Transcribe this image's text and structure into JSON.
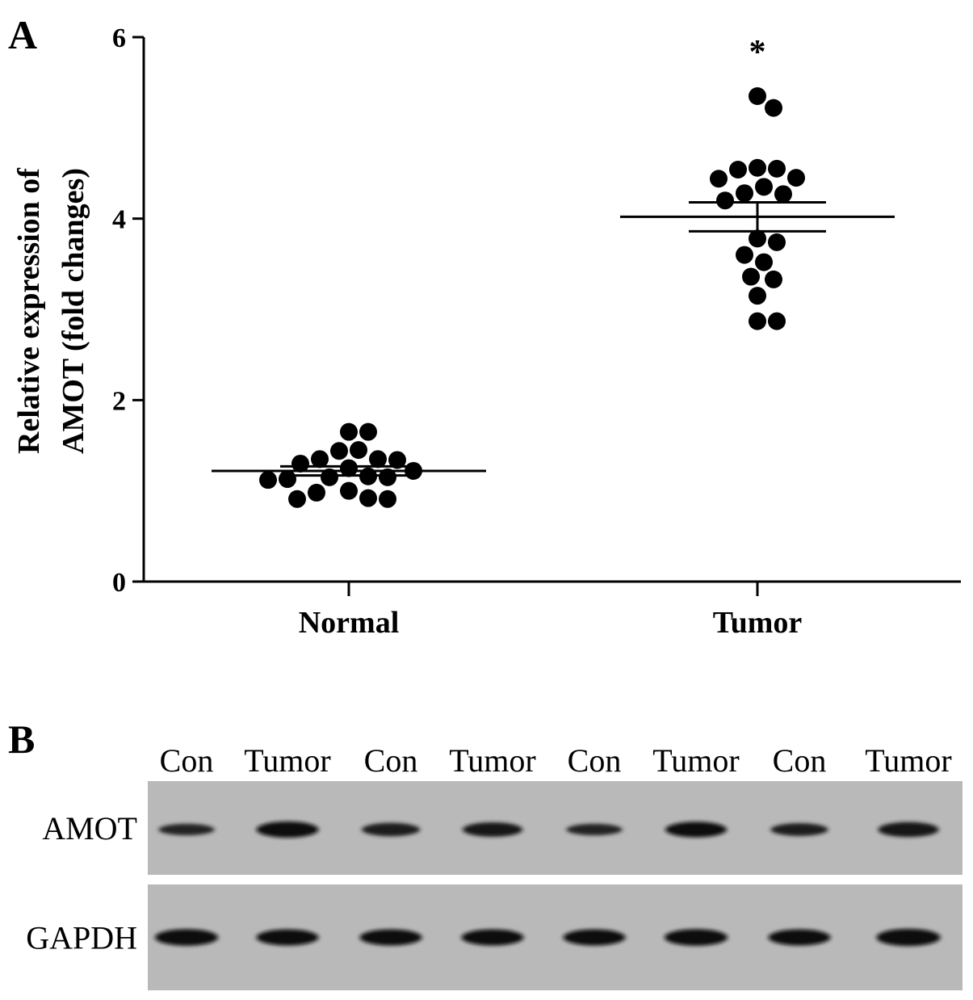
{
  "panel_a": {
    "letter": "A"
  },
  "panel_b": {
    "letter": "B",
    "lanes": [
      "Con",
      "Tumor",
      "Con",
      "Tumor",
      "Con",
      "Tumor",
      "Con",
      "Tumor"
    ],
    "rows": [
      {
        "label": "AMOT",
        "intensities": [
          0.45,
          0.85,
          0.6,
          0.7,
          0.45,
          0.8,
          0.55,
          0.75
        ]
      },
      {
        "label": "GAPDH",
        "intensities": [
          0.9,
          0.85,
          0.85,
          0.85,
          0.85,
          0.9,
          0.85,
          0.95
        ]
      }
    ]
  },
  "chart_data": {
    "type": "scatter",
    "ylabel_line1": "Relative expression of",
    "ylabel_line2": "AMOT (fold changes)",
    "xlabel": "",
    "categories": [
      "Normal",
      "Tumor"
    ],
    "ylim": [
      0,
      6
    ],
    "yticks": [
      0,
      2,
      4,
      6
    ],
    "series": [
      {
        "category": "Normal",
        "values": [
          1.65,
          1.65,
          1.45,
          1.44,
          1.35,
          1.35,
          1.34,
          1.3,
          1.25,
          1.22,
          1.16,
          1.15,
          1.15,
          1.13,
          1.12,
          1.0,
          0.98,
          0.92,
          0.91,
          0.91
        ],
        "mean": 1.22,
        "sem_upper": 1.27,
        "sem_lower": 1.17
      },
      {
        "category": "Tumor",
        "values": [
          5.35,
          5.22,
          4.56,
          4.55,
          4.54,
          4.45,
          4.44,
          4.35,
          4.28,
          4.27,
          4.2,
          3.78,
          3.74,
          3.6,
          3.52,
          3.36,
          3.33,
          3.15,
          2.87,
          2.87
        ],
        "mean": 4.02,
        "sem_upper": 4.18,
        "sem_lower": 3.86
      }
    ],
    "annotations": [
      {
        "category": "Tumor",
        "text": "*"
      }
    ],
    "grid": false
  }
}
